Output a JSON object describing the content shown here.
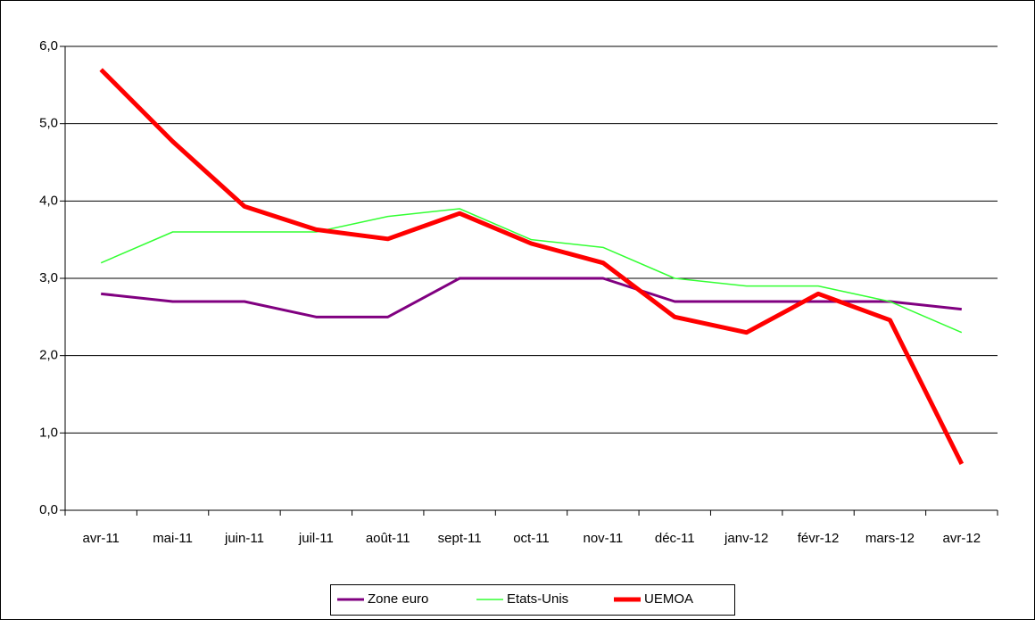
{
  "chart_data": {
    "type": "line",
    "categories": [
      "avr-11",
      "mai-11",
      "juin-11",
      "juil-11",
      "août-11",
      "sept-11",
      "oct-11",
      "nov-11",
      "déc-11",
      "janv-12",
      "févr-12",
      "mars-12",
      "avr-12"
    ],
    "series": [
      {
        "name": "Zone euro",
        "color": "#800080",
        "values": [
          2.8,
          2.7,
          2.7,
          2.5,
          2.5,
          3.0,
          3.0,
          3.0,
          2.7,
          2.7,
          2.7,
          2.7,
          2.6
        ]
      },
      {
        "name": "Etats-Unis",
        "color": "#33ff33",
        "values": [
          3.2,
          3.6,
          3.6,
          3.6,
          3.8,
          3.9,
          3.5,
          3.4,
          3.0,
          2.9,
          2.9,
          2.7,
          2.3
        ]
      },
      {
        "name": "UEMOA",
        "color": "#ff0000",
        "values": [
          5.7,
          4.77,
          3.93,
          3.63,
          3.51,
          3.84,
          3.45,
          3.2,
          2.5,
          2.3,
          2.8,
          2.46,
          0.6
        ]
      }
    ],
    "ylim": [
      0,
      6
    ],
    "yticks": [
      {
        "value": 0,
        "label": "0,0"
      },
      {
        "value": 1,
        "label": "1,0"
      },
      {
        "value": 2,
        "label": "2,0"
      },
      {
        "value": 3,
        "label": "3,0"
      },
      {
        "value": 4,
        "label": "4,0"
      },
      {
        "value": 5,
        "label": "5,0"
      },
      {
        "value": 6,
        "label": "6,0"
      }
    ],
    "grid": true
  }
}
